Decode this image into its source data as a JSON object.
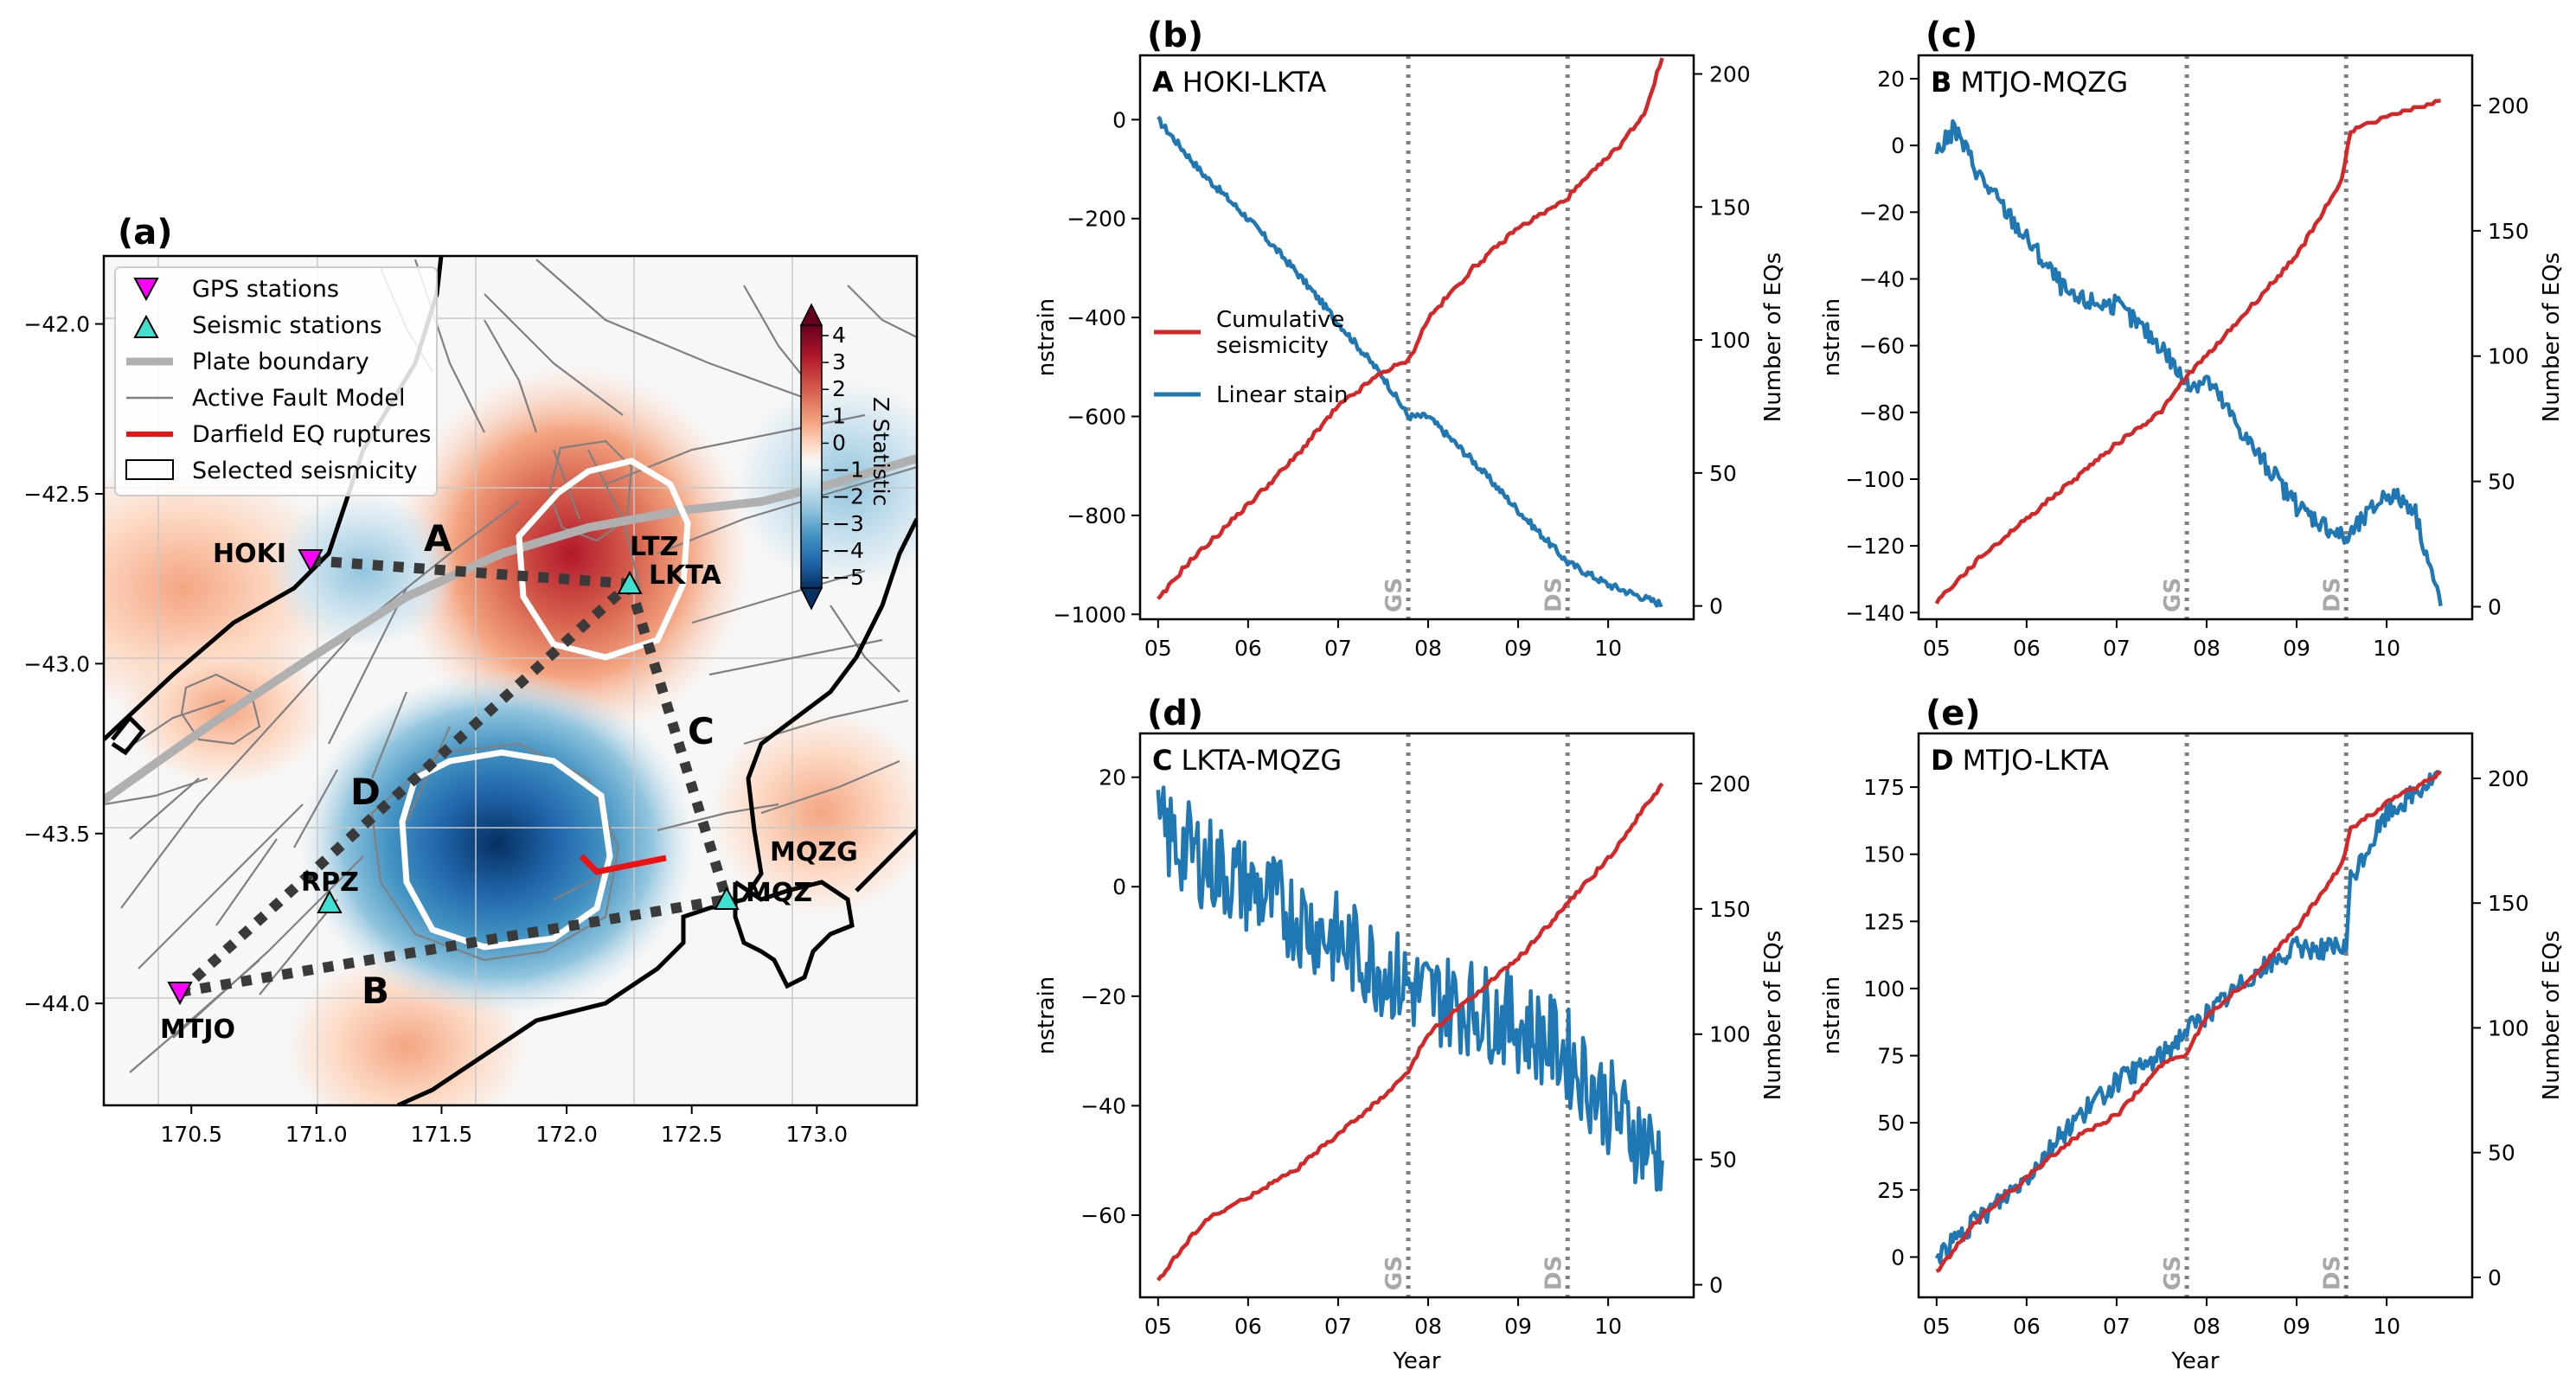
{
  "colors": {
    "stain": "#1f77b4",
    "seismicity": "#d62728",
    "event_line": "#808080",
    "gps": "#ff00ff",
    "seismic": "#40e0d0",
    "plate": "#b0b0b0",
    "fault": "#808080",
    "rupture": "#ee1111"
  },
  "events": [
    {
      "label": "GS",
      "x": 7.78
    },
    {
      "label": "DS",
      "x": 9.55
    }
  ],
  "map": {
    "title": "(a)",
    "xticks": [
      "170.5",
      "171.0",
      "171.5",
      "172.0",
      "172.5",
      "173.0"
    ],
    "yticks": [
      "−42.0",
      "−42.5",
      "−43.0",
      "−43.5",
      "−44.0"
    ],
    "xlim": [
      170.15,
      173.4
    ],
    "ylim": [
      -44.3,
      -41.8
    ],
    "legend": [
      {
        "label": "GPS stations",
        "icon": "magenta-triangle-down"
      },
      {
        "label": "Seismic stations",
        "icon": "cyan-triangle-up"
      },
      {
        "label": "Plate boundary",
        "icon": "thick-gray-line"
      },
      {
        "label": "Active Fault Model",
        "icon": "thin-gray-line"
      },
      {
        "label": "Darfield EQ ruptures",
        "icon": "red-line"
      },
      {
        "label": "Selected seismicity",
        "icon": "white-box"
      }
    ],
    "colorbar": {
      "label": "Z Statistic",
      "ticks": [
        "4",
        "3",
        "2",
        "1",
        "0",
        "−1",
        "−2",
        "−3",
        "−4",
        "−5"
      ]
    },
    "gps_stations": [
      {
        "name": "HOKI",
        "lon": 170.98,
        "lat": -42.71
      },
      {
        "name": "LKTA",
        "lon": 172.27,
        "lat": -42.78
      },
      {
        "name": "MQZG",
        "lon": 172.65,
        "lat": -43.7
      },
      {
        "name": "MTJO",
        "lon": 170.47,
        "lat": -43.99
      }
    ],
    "seismic_stations": [
      {
        "name": "LTZ",
        "lon": 172.27,
        "lat": -42.78
      },
      {
        "name": "MQZ",
        "lon": 172.65,
        "lat": -43.7
      },
      {
        "name": "RPZ",
        "lon": 171.05,
        "lat": -43.71
      }
    ],
    "baselines": [
      {
        "name": "A",
        "label_lon": 171.4,
        "label_lat": -42.65
      },
      {
        "name": "B",
        "label_lon": 171.25,
        "label_lat": -43.96
      },
      {
        "name": "C",
        "label_lon": 172.57,
        "label_lat": -43.21
      },
      {
        "name": "D",
        "label_lon": 171.2,
        "label_lat": -43.39
      }
    ]
  },
  "panels": [
    {
      "id": "b",
      "title": "(b)",
      "letter": "A",
      "label": "HOKI-LKTA",
      "ylabel": "nstrain",
      "ylabel2": "Number of EQs",
      "xlabel": "",
      "xticks": [
        "05",
        "06",
        "07",
        "08",
        "09",
        "10"
      ],
      "ylim": [
        -1010,
        130
      ],
      "yticks": [
        0,
        -200,
        -400,
        -600,
        -800,
        -1000
      ],
      "y2ticks": [
        0,
        50,
        100,
        150,
        200
      ],
      "legend": {
        "seismicity": "Cumulative seismicity",
        "strain": "Linear stain"
      }
    },
    {
      "id": "c",
      "title": "(c)",
      "letter": "B",
      "label": "MTJO-MQZG",
      "ylabel": "nstrain",
      "ylabel2": "Number of EQs",
      "xlabel": "",
      "xticks": [
        "05",
        "06",
        "07",
        "08",
        "09",
        "10"
      ],
      "ylim": [
        -142,
        27
      ],
      "yticks": [
        20,
        0,
        -20,
        -40,
        -60,
        -80,
        -100,
        -120,
        -140
      ],
      "y2ticks": [
        0,
        50,
        100,
        150,
        200
      ]
    },
    {
      "id": "d",
      "title": "(d)",
      "letter": "C",
      "label": "LKTA-MQZG",
      "ylabel": "nstrain",
      "ylabel2": "Number of EQs",
      "xlabel": "Year",
      "xticks": [
        "05",
        "06",
        "07",
        "08",
        "09",
        "10"
      ],
      "ylim": [
        -75,
        28
      ],
      "yticks": [
        20,
        0,
        -20,
        -40,
        -60
      ],
      "y2ticks": [
        0,
        50,
        100,
        150,
        200
      ]
    },
    {
      "id": "e",
      "title": "(e)",
      "letter": "D",
      "label": "MTJO-LKTA",
      "ylabel": "nstrain",
      "ylabel2": "Number of EQs",
      "xlabel": "Year",
      "xticks": [
        "05",
        "06",
        "07",
        "08",
        "09",
        "10"
      ],
      "ylim": [
        -15,
        195
      ],
      "yticks": [
        0,
        25,
        50,
        75,
        100,
        125,
        150,
        175
      ],
      "y2ticks": [
        0,
        50,
        100,
        150,
        200
      ]
    }
  ],
  "chart_data": [
    {
      "type": "line",
      "panel": "(b) HOKI-LKTA",
      "xlim": [
        4.8,
        10.95
      ],
      "y2lim": [
        -5,
        207
      ],
      "series": [
        {
          "name": "Linear stain",
          "axis": "left",
          "x": [
            5.0,
            5.5,
            6.0,
            6.5,
            7.0,
            7.5,
            7.78,
            8.0,
            8.5,
            9.0,
            9.55,
            10.0,
            10.6
          ],
          "y": [
            0,
            -110,
            -200,
            -300,
            -410,
            -520,
            -600,
            -600,
            -690,
            -790,
            -895,
            -940,
            -980
          ]
        },
        {
          "name": "Cumulative seismicity",
          "axis": "right",
          "x": [
            5.0,
            5.3,
            5.7,
            6.0,
            6.5,
            7.0,
            7.5,
            7.78,
            8.0,
            8.5,
            9.0,
            9.5,
            9.8,
            10.1,
            10.4,
            10.6
          ],
          "y": [
            2,
            15,
            28,
            38,
            55,
            75,
            88,
            92,
            108,
            127,
            142,
            152,
            162,
            172,
            185,
            206
          ]
        }
      ]
    },
    {
      "type": "line",
      "panel": "(c) MTJO-MQZG",
      "xlim": [
        4.8,
        10.95
      ],
      "y2lim": [
        -5,
        220
      ],
      "series": [
        {
          "name": "Linear stain",
          "axis": "left",
          "x": [
            5.0,
            5.2,
            5.5,
            6.0,
            6.5,
            7.0,
            7.5,
            7.78,
            8.0,
            8.5,
            9.0,
            9.55,
            10.0,
            10.3,
            10.6
          ],
          "y": [
            -2,
            5,
            -10,
            -28,
            -46,
            -48,
            -60,
            -72,
            -70,
            -90,
            -108,
            -118,
            -104,
            -108,
            -138
          ]
        },
        {
          "name": "Cumulative seismicity",
          "axis": "right",
          "x": [
            5.0,
            5.5,
            6.0,
            6.5,
            7.0,
            7.5,
            7.78,
            8.0,
            8.5,
            9.0,
            9.5,
            9.6,
            10.0,
            10.6
          ],
          "y": [
            2,
            20,
            35,
            50,
            65,
            78,
            92,
            100,
            120,
            140,
            170,
            190,
            195,
            202
          ]
        }
      ]
    },
    {
      "type": "line",
      "panel": "(d) LKTA-MQZG",
      "xlim": [
        4.8,
        10.95
      ],
      "y2lim": [
        -5,
        220
      ],
      "series": [
        {
          "name": "Linear stain",
          "axis": "left",
          "x": [
            5.0,
            5.5,
            6.0,
            6.5,
            7.0,
            7.5,
            7.78,
            8.0,
            8.5,
            9.0,
            9.5,
            10.0,
            10.3,
            10.6
          ],
          "y": [
            10,
            5,
            0,
            -5,
            -10,
            -15,
            -18,
            -20,
            -22,
            -25,
            -30,
            -40,
            -45,
            -50
          ]
        },
        {
          "name": "Cumulative seismicity",
          "axis": "right",
          "x": [
            5.0,
            5.5,
            6.0,
            6.5,
            7.0,
            7.5,
            7.78,
            8.0,
            8.5,
            9.0,
            9.5,
            10.0,
            10.6
          ],
          "y": [
            2,
            25,
            35,
            45,
            60,
            75,
            85,
            100,
            115,
            130,
            150,
            170,
            200
          ]
        }
      ]
    },
    {
      "type": "line",
      "panel": "(e) MTJO-LKTA",
      "xlim": [
        4.8,
        10.95
      ],
      "y2lim": [
        -8,
        218
      ],
      "series": [
        {
          "name": "Linear stain",
          "axis": "left",
          "x": [
            5.0,
            5.5,
            6.0,
            6.5,
            7.0,
            7.5,
            7.78,
            8.0,
            8.5,
            9.0,
            9.55,
            9.6,
            10.0,
            10.6
          ],
          "y": [
            0,
            15,
            30,
            50,
            65,
            75,
            85,
            90,
            105,
            115,
            115,
            140,
            165,
            180
          ]
        },
        {
          "name": "Cumulative seismicity",
          "axis": "right",
          "x": [
            5.0,
            5.5,
            6.0,
            6.5,
            7.0,
            7.5,
            7.78,
            8.0,
            8.5,
            9.0,
            9.5,
            9.6,
            10.0,
            10.6
          ],
          "y": [
            2,
            25,
            40,
            55,
            65,
            85,
            90,
            105,
            120,
            140,
            165,
            180,
            190,
            202
          ]
        }
      ]
    }
  ]
}
